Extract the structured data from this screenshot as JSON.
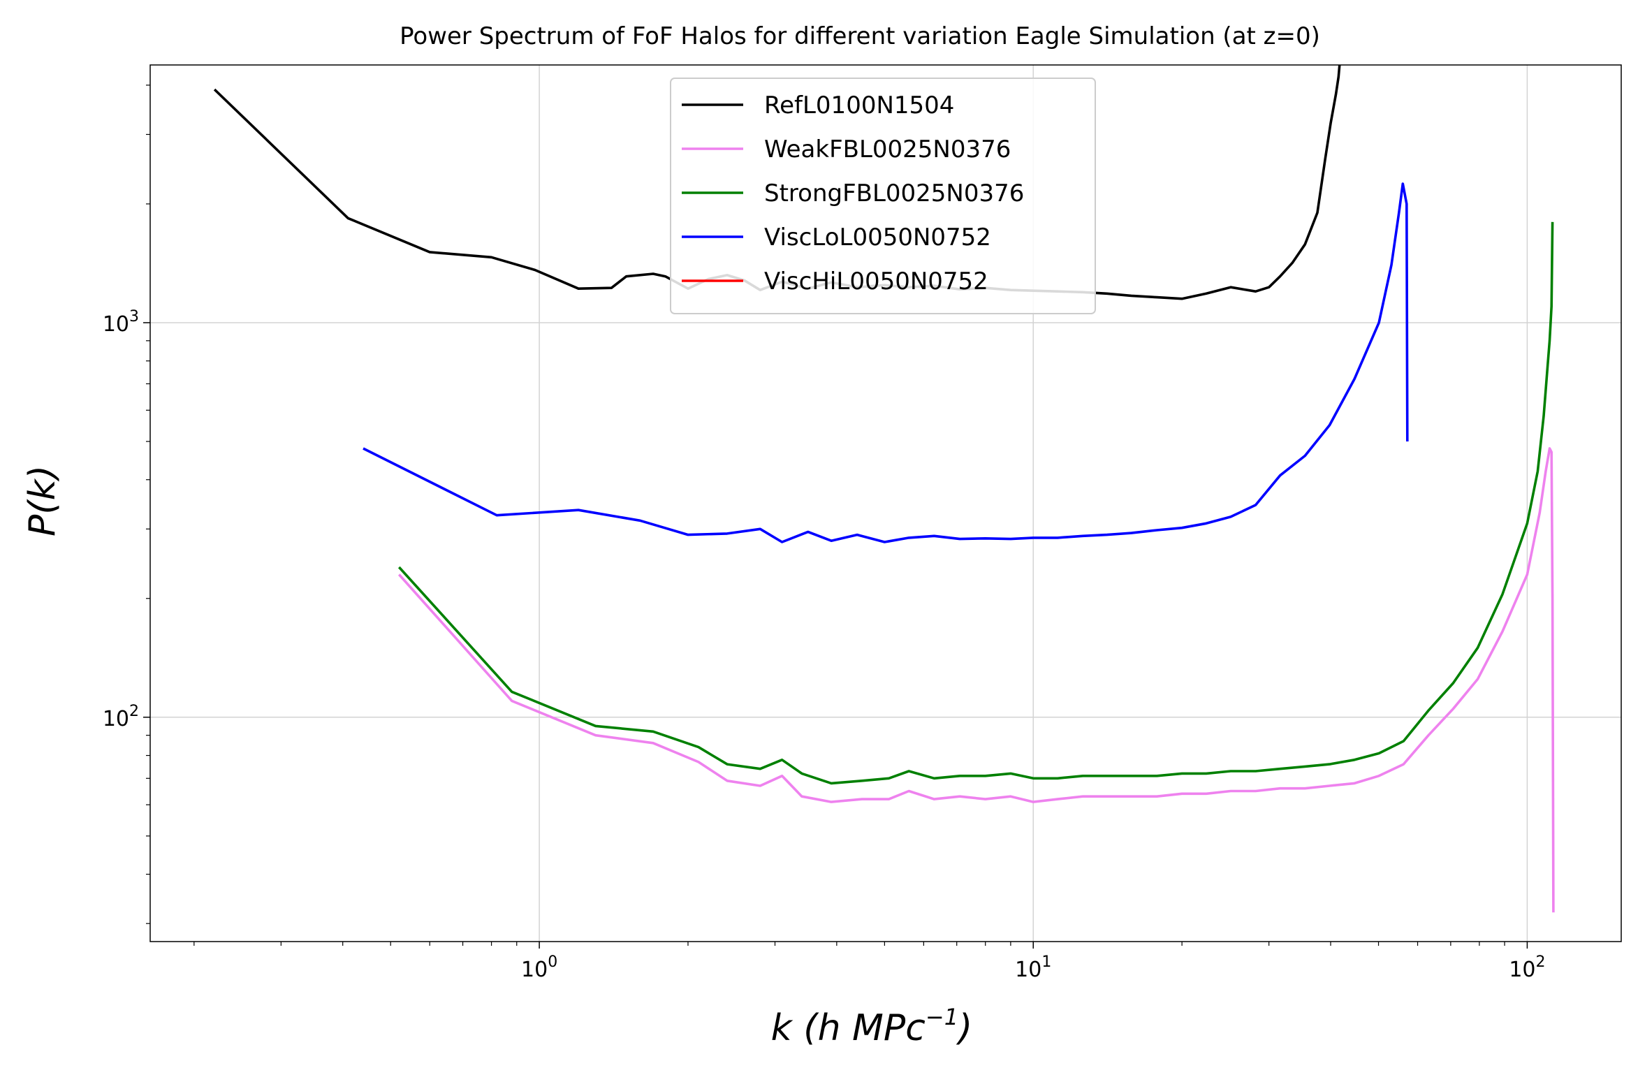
{
  "chart_data": {
    "type": "line",
    "title": "Power Spectrum of FoF Halos for different variation Eagle Simulation (at z=0)",
    "xlabel": {
      "pre": "k (h MPc",
      "exp": "−1",
      "post": ")"
    },
    "ylabel": "P(k)",
    "xscale": "log",
    "yscale": "log",
    "xlim": [
      0.163,
      155
    ],
    "ylim": [
      27,
      4500
    ],
    "grid": true,
    "legend_position": "top-center",
    "x_ticks": [
      {
        "value": 1,
        "base": "10",
        "exp": "0"
      },
      {
        "value": 10,
        "base": "10",
        "exp": "1"
      },
      {
        "value": 100,
        "base": "10",
        "exp": "2"
      }
    ],
    "y_ticks": [
      {
        "value": 100,
        "base": "10",
        "exp": "2"
      },
      {
        "value": 1000,
        "base": "10",
        "exp": "3"
      }
    ],
    "series": [
      {
        "name": "RefL0100N1504",
        "color": "#000000",
        "points": [
          [
            0.22,
            3900
          ],
          [
            0.41,
            1840
          ],
          [
            0.6,
            1510
          ],
          [
            0.8,
            1465
          ],
          [
            0.98,
            1360
          ],
          [
            1.2,
            1220
          ],
          [
            1.4,
            1225
          ],
          [
            1.5,
            1310
          ],
          [
            1.7,
            1330
          ],
          [
            1.8,
            1310
          ],
          [
            2.0,
            1220
          ],
          [
            2.2,
            1290
          ],
          [
            2.4,
            1320
          ],
          [
            2.6,
            1280
          ],
          [
            2.8,
            1210
          ],
          [
            3.1,
            1270
          ],
          [
            3.5,
            1220
          ],
          [
            3.9,
            1265
          ],
          [
            4.4,
            1230
          ],
          [
            5.0,
            1245
          ],
          [
            5.6,
            1230
          ],
          [
            6.3,
            1240
          ],
          [
            7.1,
            1215
          ],
          [
            8.0,
            1225
          ],
          [
            9.0,
            1210
          ],
          [
            10.0,
            1205
          ],
          [
            11.2,
            1200
          ],
          [
            12.6,
            1195
          ],
          [
            14.1,
            1185
          ],
          [
            15.8,
            1170
          ],
          [
            17.8,
            1160
          ],
          [
            20.0,
            1150
          ],
          [
            22.4,
            1185
          ],
          [
            25.1,
            1230
          ],
          [
            28.2,
            1200
          ],
          [
            30.0,
            1230
          ],
          [
            31.6,
            1310
          ],
          [
            33.5,
            1420
          ],
          [
            35.5,
            1580
          ],
          [
            37.6,
            1900
          ],
          [
            39.0,
            2600
          ],
          [
            40.0,
            3200
          ],
          [
            41.0,
            3800
          ],
          [
            41.5,
            4200
          ],
          [
            42.0,
            5000
          ]
        ]
      },
      {
        "name": "WeakFBL0025N0376",
        "color": "#ee82ee",
        "points": [
          [
            0.52,
            230
          ],
          [
            0.88,
            110
          ],
          [
            1.3,
            90
          ],
          [
            1.7,
            86
          ],
          [
            2.1,
            77
          ],
          [
            2.4,
            69
          ],
          [
            2.8,
            67
          ],
          [
            3.1,
            71
          ],
          [
            3.4,
            63
          ],
          [
            3.9,
            61
          ],
          [
            4.5,
            62
          ],
          [
            5.1,
            62
          ],
          [
            5.6,
            65
          ],
          [
            6.3,
            62
          ],
          [
            7.1,
            63
          ],
          [
            8.0,
            62
          ],
          [
            9.0,
            63
          ],
          [
            10.0,
            61
          ],
          [
            11.2,
            62
          ],
          [
            12.6,
            63
          ],
          [
            14.1,
            63
          ],
          [
            15.8,
            63
          ],
          [
            17.8,
            63
          ],
          [
            20.0,
            64
          ],
          [
            22.4,
            64
          ],
          [
            25.1,
            65
          ],
          [
            28.2,
            65
          ],
          [
            31.6,
            66
          ],
          [
            35.5,
            66
          ],
          [
            39.8,
            67
          ],
          [
            44.7,
            68
          ],
          [
            50.1,
            71
          ],
          [
            56.2,
            76
          ],
          [
            63.1,
            90
          ],
          [
            70.8,
            105
          ],
          [
            79.4,
            125
          ],
          [
            89.1,
            165
          ],
          [
            100.0,
            230
          ],
          [
            106.0,
            330
          ],
          [
            109.0,
            420
          ],
          [
            111.0,
            480
          ],
          [
            112.0,
            470
          ],
          [
            112.5,
            200
          ],
          [
            113.0,
            32
          ]
        ]
      },
      {
        "name": "StrongFBL0025N0376",
        "color": "#008000",
        "points": [
          [
            0.52,
            240
          ],
          [
            0.88,
            116
          ],
          [
            1.3,
            95
          ],
          [
            1.7,
            92
          ],
          [
            2.1,
            84
          ],
          [
            2.4,
            76
          ],
          [
            2.8,
            74
          ],
          [
            3.1,
            78
          ],
          [
            3.4,
            72
          ],
          [
            3.9,
            68
          ],
          [
            4.5,
            69
          ],
          [
            5.1,
            70
          ],
          [
            5.6,
            73
          ],
          [
            6.3,
            70
          ],
          [
            7.1,
            71
          ],
          [
            8.0,
            71
          ],
          [
            9.0,
            72
          ],
          [
            10.0,
            70
          ],
          [
            11.2,
            70
          ],
          [
            12.6,
            71
          ],
          [
            14.1,
            71
          ],
          [
            15.8,
            71
          ],
          [
            17.8,
            71
          ],
          [
            20.0,
            72
          ],
          [
            22.4,
            72
          ],
          [
            25.1,
            73
          ],
          [
            28.2,
            73
          ],
          [
            31.6,
            74
          ],
          [
            35.5,
            75
          ],
          [
            39.8,
            76
          ],
          [
            44.7,
            78
          ],
          [
            50.1,
            81
          ],
          [
            56.2,
            87
          ],
          [
            63.1,
            104
          ],
          [
            70.8,
            122
          ],
          [
            79.4,
            150
          ],
          [
            89.1,
            205
          ],
          [
            100.0,
            310
          ],
          [
            105.0,
            420
          ],
          [
            108.0,
            580
          ],
          [
            110.0,
            780
          ],
          [
            111.0,
            900
          ],
          [
            112.0,
            1100
          ],
          [
            112.5,
            1800
          ]
        ]
      },
      {
        "name": "ViscLoL0050N0752",
        "color": "#0000ff",
        "points": [
          [
            0.44,
            480
          ],
          [
            0.82,
            325
          ],
          [
            1.2,
            335
          ],
          [
            1.6,
            315
          ],
          [
            2.0,
            290
          ],
          [
            2.4,
            292
          ],
          [
            2.8,
            300
          ],
          [
            3.1,
            278
          ],
          [
            3.5,
            295
          ],
          [
            3.9,
            280
          ],
          [
            4.4,
            290
          ],
          [
            5.0,
            278
          ],
          [
            5.6,
            285
          ],
          [
            6.3,
            288
          ],
          [
            7.1,
            283
          ],
          [
            8.0,
            284
          ],
          [
            9.0,
            283
          ],
          [
            10.0,
            285
          ],
          [
            11.2,
            285
          ],
          [
            12.6,
            288
          ],
          [
            14.1,
            290
          ],
          [
            15.8,
            293
          ],
          [
            17.8,
            298
          ],
          [
            20.0,
            302
          ],
          [
            22.4,
            310
          ],
          [
            25.1,
            322
          ],
          [
            28.2,
            345
          ],
          [
            31.6,
            410
          ],
          [
            35.5,
            460
          ],
          [
            39.8,
            550
          ],
          [
            44.7,
            720
          ],
          [
            50.1,
            1000
          ],
          [
            53.1,
            1400
          ],
          [
            55.0,
            1900
          ],
          [
            56.0,
            2250
          ],
          [
            57.0,
            2000
          ],
          [
            57.2,
            500
          ]
        ]
      },
      {
        "name": "ViscHiL0050N0752",
        "color": "#ff0000",
        "points": []
      }
    ]
  }
}
